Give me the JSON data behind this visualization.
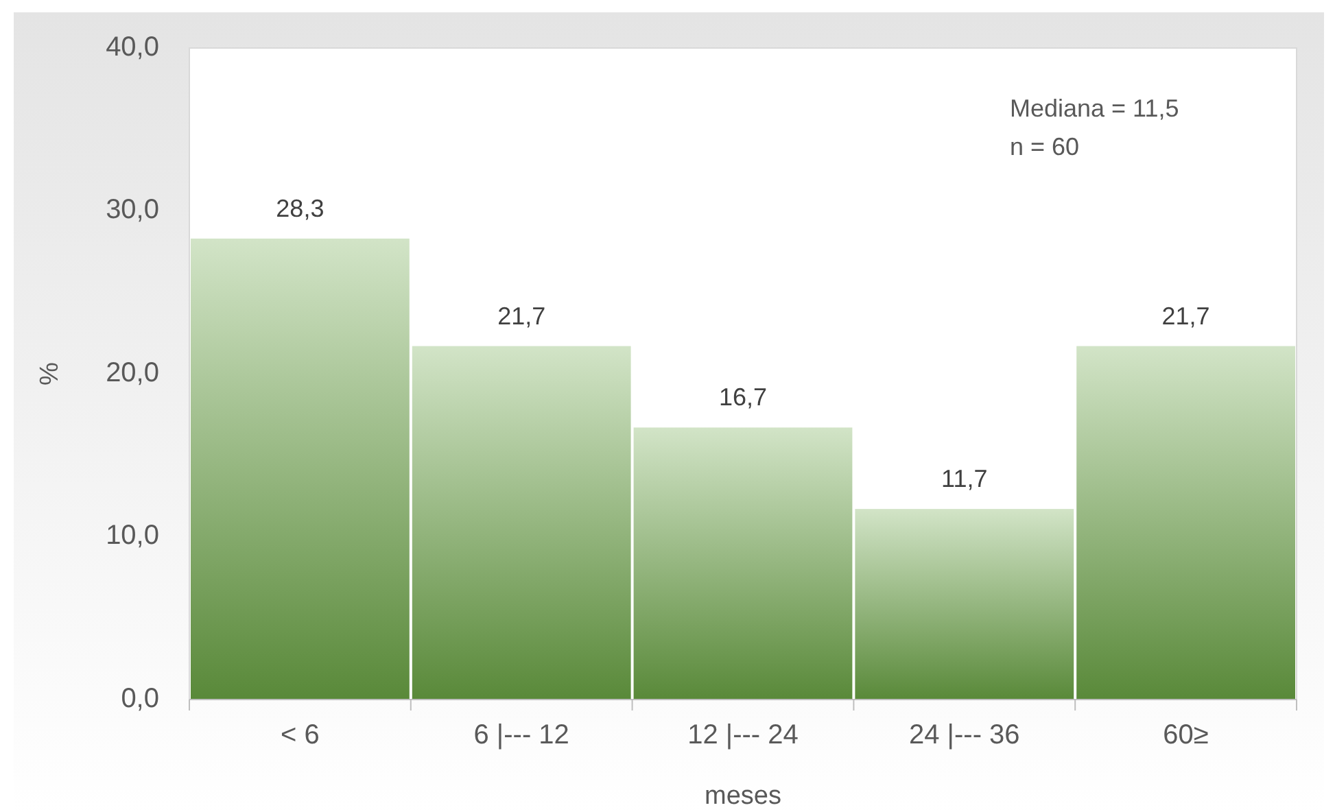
{
  "chart_data": {
    "type": "bar",
    "xlabel": "meses",
    "ylabel": "%",
    "categories": [
      "< 6",
      "6 |--- 12",
      "12 |--- 24",
      "24 |--- 36",
      "60≥"
    ],
    "values": [
      28.3,
      21.7,
      16.7,
      11.7,
      21.7
    ],
    "value_labels": [
      "28,3",
      "21,7",
      "16,7",
      "11,7",
      "21,7"
    ],
    "color": "#6aa444",
    "ylim": [
      0,
      40
    ],
    "yticks": [
      {
        "value": 0,
        "label": "0,0"
      },
      {
        "value": 10,
        "label": "10,0"
      },
      {
        "value": 20,
        "label": "20,0"
      },
      {
        "value": 30,
        "label": "30,0"
      },
      {
        "value": 40,
        "label": "40,0"
      }
    ],
    "grid": false,
    "annotations": [
      "Mediana = 11,5",
      "n = 60"
    ]
  }
}
